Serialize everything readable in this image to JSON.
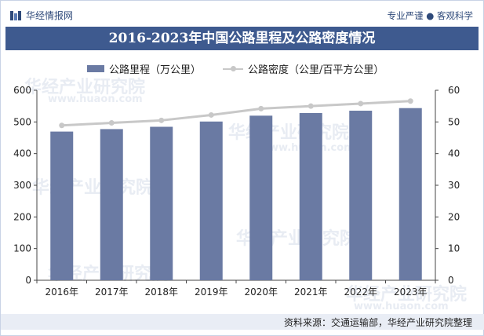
{
  "header": {
    "logo_text": "华经情报网",
    "tagline": "专业严谨 ● 客观科学"
  },
  "watermark": {
    "text": "华经产业研究院",
    "url": "www.huaon.com"
  },
  "footer": {
    "source": "资料来源：交通运输部，华经产业研究院整理"
  },
  "colors": {
    "title_bg": "#3e5a8f",
    "bar": "#6a7aa3",
    "line": "#c8c8c8",
    "footer_bg": "#e9edf5"
  },
  "chart_data": {
    "type": "bar",
    "title": "2016-2023年中国公路里程及公路密度情况",
    "categories": [
      "2016年",
      "2017年",
      "2018年",
      "2019年",
      "2020年",
      "2021年",
      "2022年",
      "2023年"
    ],
    "series": [
      {
        "name": "公路里程（万公里）",
        "type": "bar",
        "axis": "left",
        "values": [
          469.6,
          477.4,
          484.7,
          501.3,
          519.8,
          528.1,
          535.5,
          543.7
        ]
      },
      {
        "name": "公路密度（公里/百平方公里）",
        "type": "line",
        "axis": "right",
        "values": [
          48.9,
          49.7,
          50.5,
          52.2,
          54.2,
          55.0,
          55.8,
          56.6
        ]
      }
    ],
    "y_left": {
      "min": 0,
      "max": 600,
      "ticks": [
        "0",
        "100",
        "200",
        "300",
        "400",
        "500",
        "600"
      ]
    },
    "y_right": {
      "min": 0,
      "max": 60,
      "ticks": [
        "0",
        "10",
        "20",
        "30",
        "40",
        "50",
        "60"
      ]
    },
    "grid": false,
    "legend_position": "top"
  }
}
